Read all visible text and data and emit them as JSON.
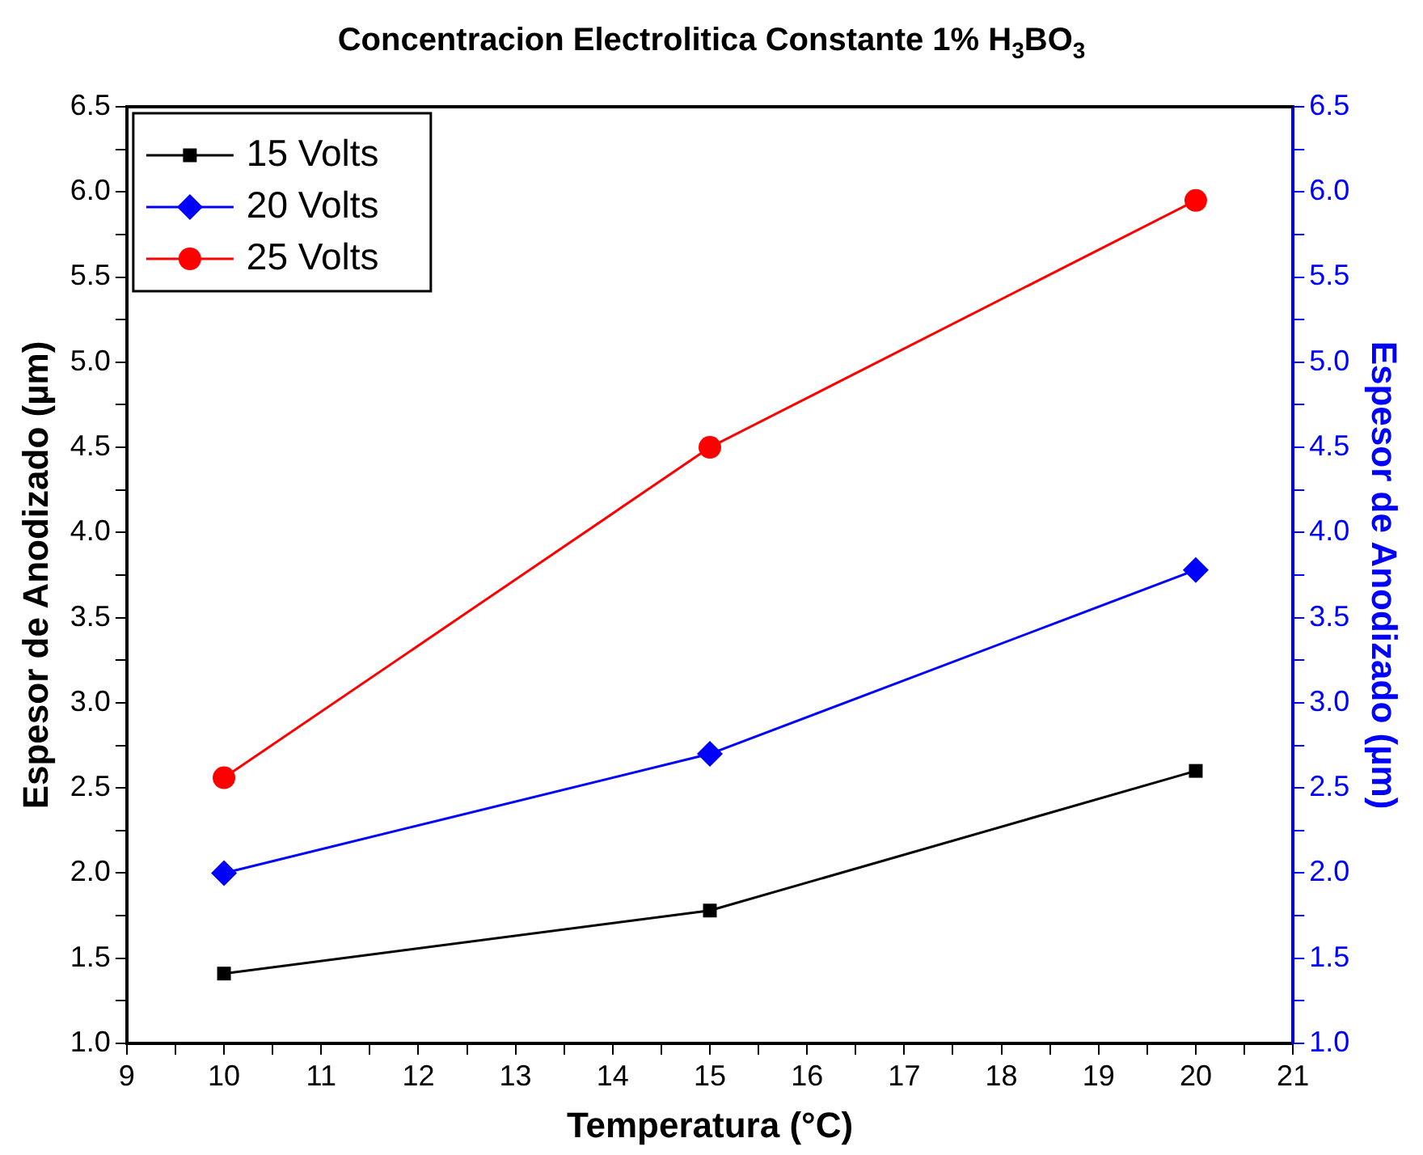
{
  "chart_data": {
    "type": "line",
    "title": "Concentracion Electrolitica Constante 1% H$_{3}$BO$_{3}$",
    "xlabel": "Temperatura (°C)",
    "ylabel": "Espesor de Anodizado (µm)",
    "y2label": "Espesor de Anodizado (µm)",
    "x": [
      10,
      15,
      20
    ],
    "series": [
      {
        "name": "15 Volts",
        "color": "#000000",
        "marker": "square",
        "values": [
          1.41,
          1.78,
          2.6
        ]
      },
      {
        "name": "20 Volts",
        "color": "#0000ff",
        "marker": "diamond",
        "values": [
          2.0,
          2.7,
          3.78
        ]
      },
      {
        "name": "25 Volts",
        "color": "#ff0000",
        "marker": "circle",
        "values": [
          2.56,
          4.5,
          5.95
        ]
      }
    ],
    "xlim": [
      9,
      21
    ],
    "xticks": [
      9,
      {
        "value": 9.5,
        "label": null
      },
      10,
      {
        "value": 10.5,
        "label": null
      },
      11,
      {
        "value": 11.5,
        "label": null
      },
      12,
      {
        "value": 12.5,
        "label": null
      },
      13,
      {
        "value": 13.5,
        "label": null
      },
      14,
      {
        "value": 14.5,
        "label": null
      },
      15,
      {
        "value": 15.5,
        "label": null
      },
      16,
      {
        "value": 16.5,
        "label": null
      },
      17,
      {
        "value": 17.5,
        "label": null
      },
      18,
      {
        "value": 18.5,
        "label": null
      },
      19,
      {
        "value": 19.5,
        "label": null
      },
      20,
      {
        "value": 20.5,
        "label": null
      },
      21
    ],
    "ylim": [
      1,
      6.5
    ],
    "yticks": [
      {
        "value": 1,
        "label": "1.0"
      },
      {
        "value": 1.25,
        "label": null
      },
      1.5,
      {
        "value": 1.75,
        "label": null
      },
      {
        "value": 2,
        "label": "2.0"
      },
      {
        "value": 2.25,
        "label": null
      },
      2.5,
      {
        "value": 2.75,
        "label": null
      },
      {
        "value": 3,
        "label": "3.0"
      },
      {
        "value": 3.25,
        "label": null
      },
      3.5,
      {
        "value": 3.75,
        "label": null
      },
      {
        "value": 4,
        "label": "4.0"
      },
      {
        "value": 4.25,
        "label": null
      },
      4.5,
      {
        "value": 4.75,
        "label": null
      },
      {
        "value": 5,
        "label": "5.0"
      },
      {
        "value": 5.25,
        "label": null
      },
      5.5,
      {
        "value": 5.75,
        "label": null
      },
      {
        "value": 6,
        "label": "6.0"
      },
      {
        "value": 6.25,
        "label": null
      },
      6.5
    ],
    "y2lim": [
      1,
      6.5
    ],
    "y2ticks": [
      {
        "value": 1,
        "label": "1.0"
      },
      {
        "value": 1.25,
        "label": null
      },
      1.5,
      {
        "value": 1.75,
        "label": null
      },
      {
        "value": 2,
        "label": "2.0"
      },
      {
        "value": 2.25,
        "label": null
      },
      2.5,
      {
        "value": 2.75,
        "label": null
      },
      {
        "value": 3,
        "label": "3.0"
      },
      {
        "value": 3.25,
        "label": null
      },
      3.5,
      {
        "value": 3.75,
        "label": null
      },
      {
        "value": 4,
        "label": "4.0"
      },
      {
        "value": 4.25,
        "label": null
      },
      4.5,
      {
        "value": 4.75,
        "label": null
      },
      {
        "value": 5,
        "label": "5.0"
      },
      {
        "value": 5.25,
        "label": null
      },
      5.5,
      {
        "value": 5.75,
        "label": null
      },
      {
        "value": 6,
        "label": "6.0"
      },
      {
        "value": 6.25,
        "label": null
      },
      6.5
    ],
    "grid": false,
    "legend": "top left",
    "line_style": "solid"
  }
}
